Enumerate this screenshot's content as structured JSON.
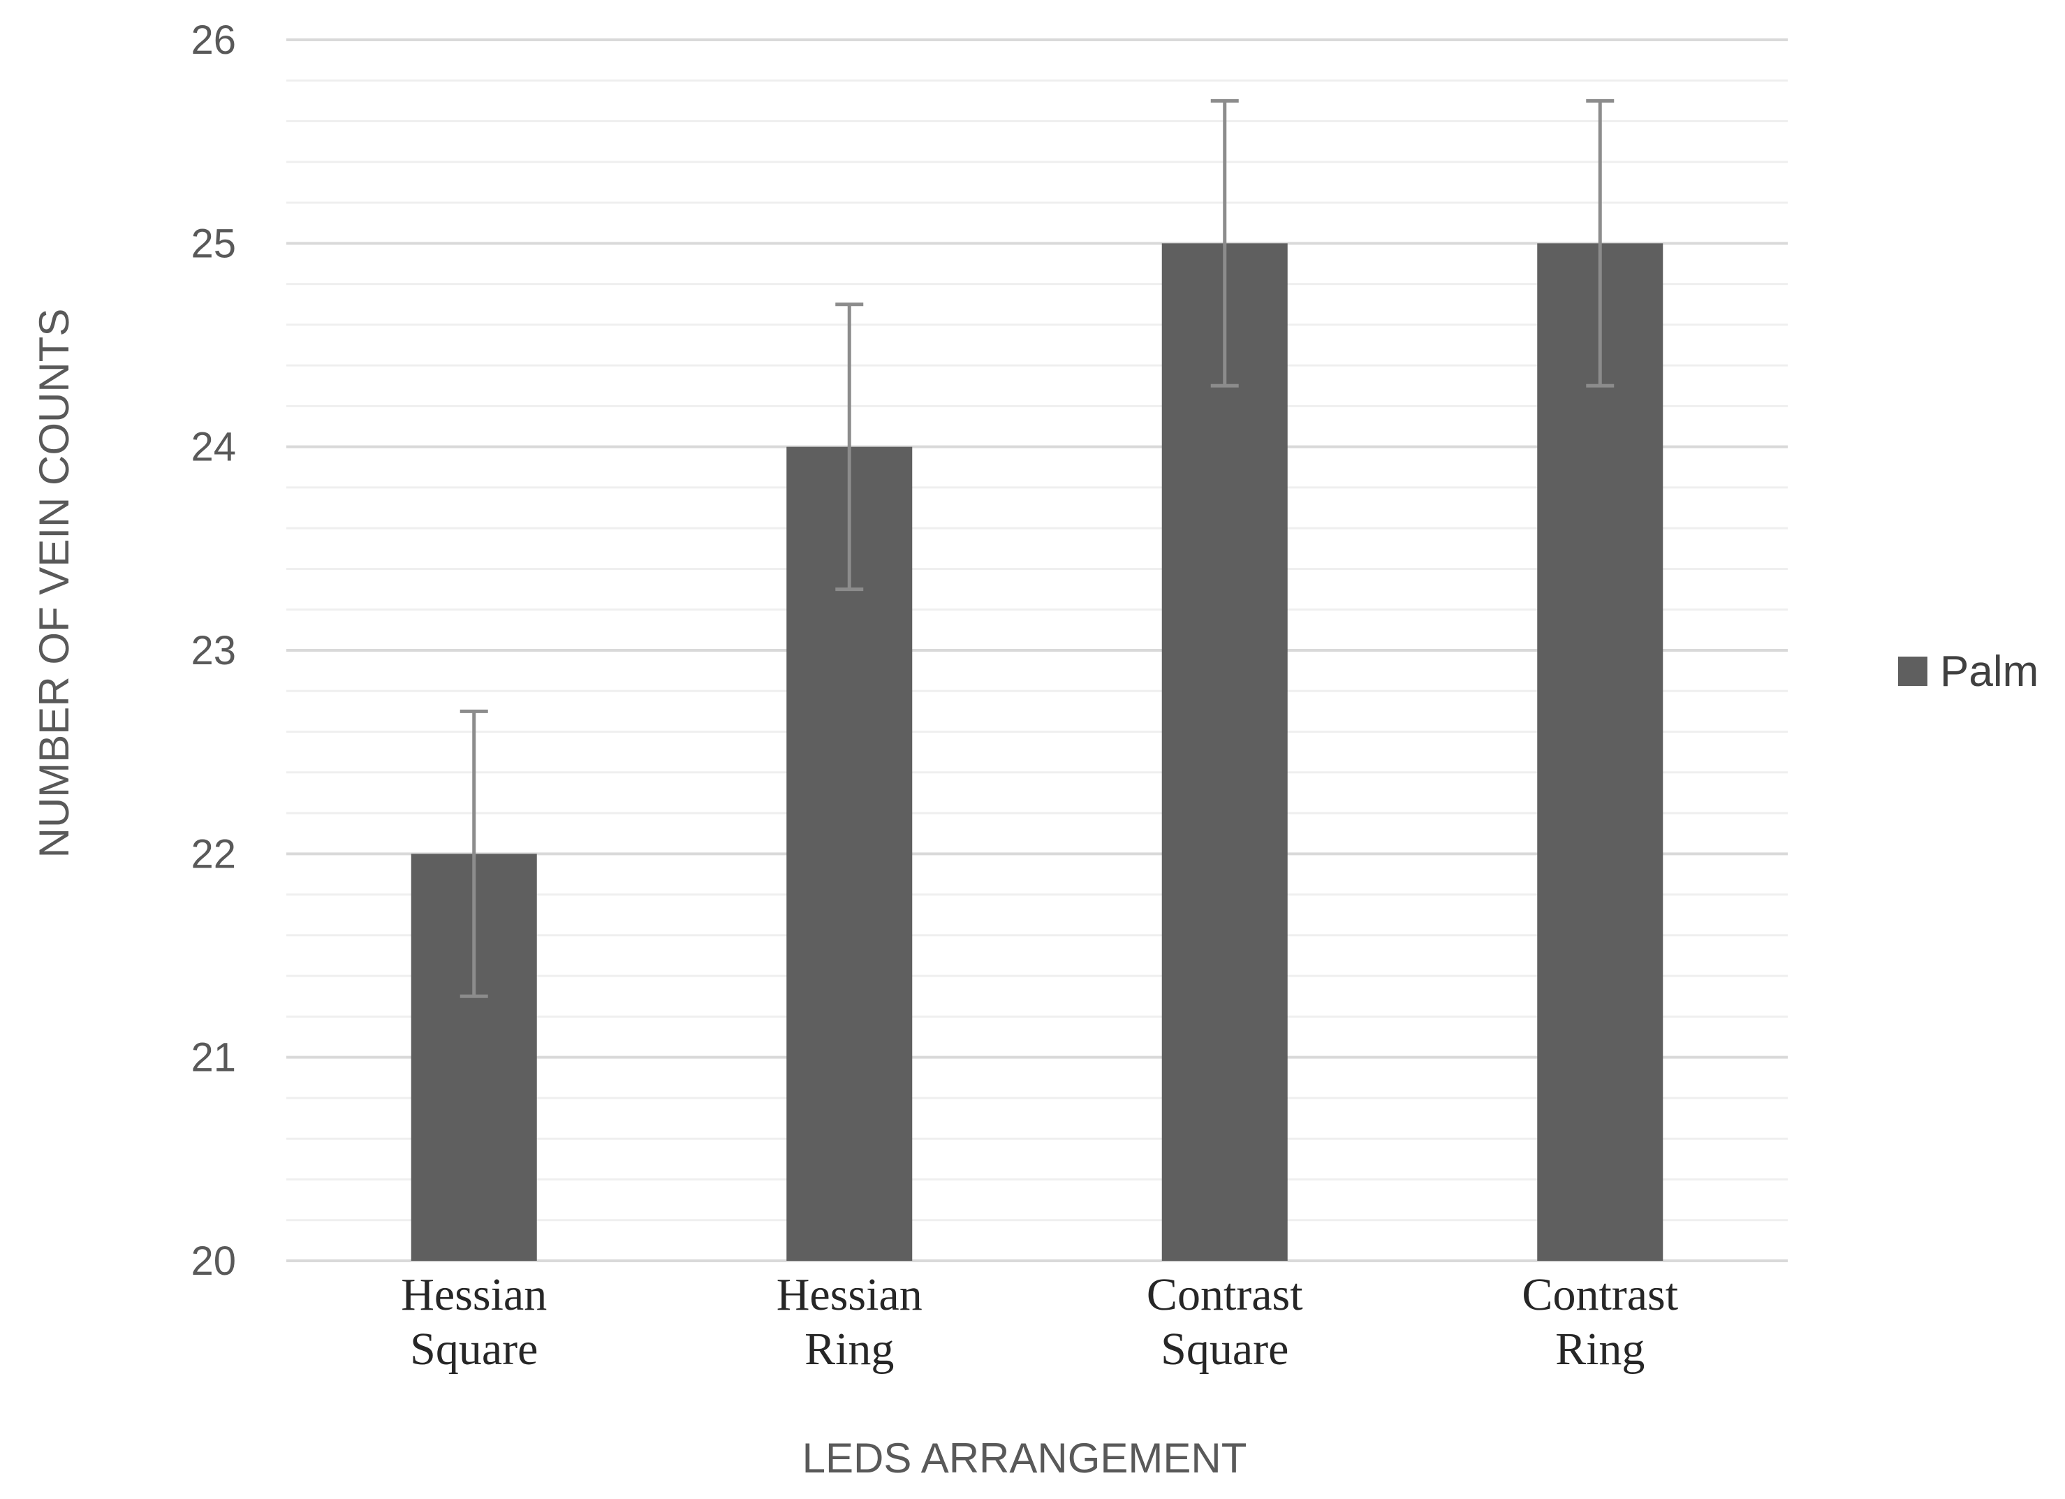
{
  "chart_data": {
    "type": "bar",
    "title": "",
    "xlabel": "LEDS ARRANGEMENT",
    "ylabel": "NUMBER OF VEIN COUNTS",
    "categories": [
      [
        "Hessian",
        "Square"
      ],
      [
        "Hessian",
        "Ring"
      ],
      [
        "Contrast",
        "Square"
      ],
      [
        "Contrast",
        "Ring"
      ]
    ],
    "series": [
      {
        "name": "Palm",
        "color": "#5f5f5f",
        "values": [
          22,
          24,
          25,
          25
        ],
        "error_plus": [
          0.7,
          0.7,
          0.7,
          0.7
        ],
        "error_minus": [
          0.7,
          0.7,
          0.7,
          0.7
        ]
      }
    ],
    "ylim": [
      20,
      26
    ],
    "yticks": [
      20,
      21,
      22,
      23,
      24,
      25,
      26
    ],
    "minor_step": 0.2,
    "grid": true,
    "legend": "right",
    "colors": {
      "major_grid": "#d9d9d9",
      "minor_grid": "#efefef",
      "error_bar": "#8c8c8c"
    }
  }
}
